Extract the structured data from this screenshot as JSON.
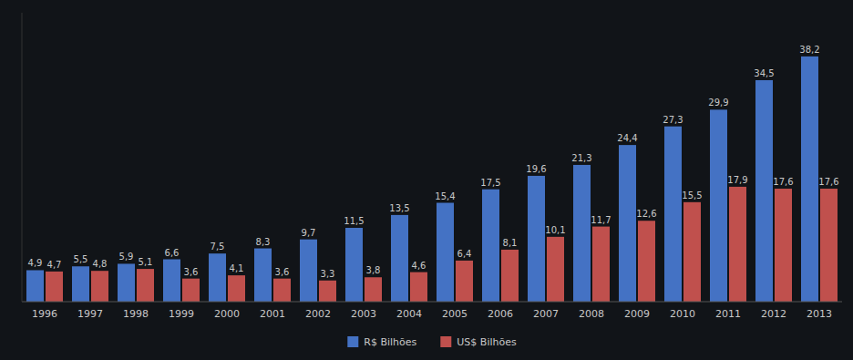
{
  "chart_data": {
    "type": "bar",
    "categories": [
      "1996",
      "1997",
      "1998",
      "1999",
      "2000",
      "2001",
      "2002",
      "2003",
      "2004",
      "2005",
      "2006",
      "2007",
      "2008",
      "2009",
      "2010",
      "2011",
      "2012",
      "2013"
    ],
    "series": [
      {
        "name": "R$ Bilhões",
        "color": "#4472C4",
        "values": [
          4.9,
          5.5,
          5.9,
          6.6,
          7.5,
          8.3,
          9.7,
          11.5,
          13.5,
          15.4,
          17.5,
          19.6,
          21.3,
          24.4,
          27.3,
          29.9,
          34.5,
          38.2
        ],
        "value_labels": [
          "4,9",
          "5,5",
          "5,9",
          "6,6",
          "7,5",
          "8,3",
          "9,7",
          "11,5",
          "13,5",
          "15,4",
          "17,5",
          "19,6",
          "21,3",
          "24,4",
          "27,3",
          "29,9",
          "34,5",
          "38,2"
        ]
      },
      {
        "name": "US$ Bilhões",
        "color": "#C0504D",
        "values": [
          4.7,
          4.8,
          5.1,
          3.6,
          4.1,
          3.6,
          3.3,
          3.8,
          4.6,
          6.4,
          8.1,
          10.1,
          11.7,
          12.6,
          15.5,
          17.9,
          17.6,
          17.6
        ],
        "value_labels": [
          "4,7",
          "4,8",
          "5,1",
          "3,6",
          "4,1",
          "3,6",
          "3,3",
          "3,8",
          "4,6",
          "6,4",
          "8,1",
          "10,1",
          "11,7",
          "12,6",
          "15,5",
          "17,9",
          "17,6",
          "17,6"
        ]
      }
    ],
    "ylim": [
      0,
      45
    ],
    "grid": false,
    "legend": "bottom",
    "data_labels": true,
    "tick_labels": "x"
  }
}
